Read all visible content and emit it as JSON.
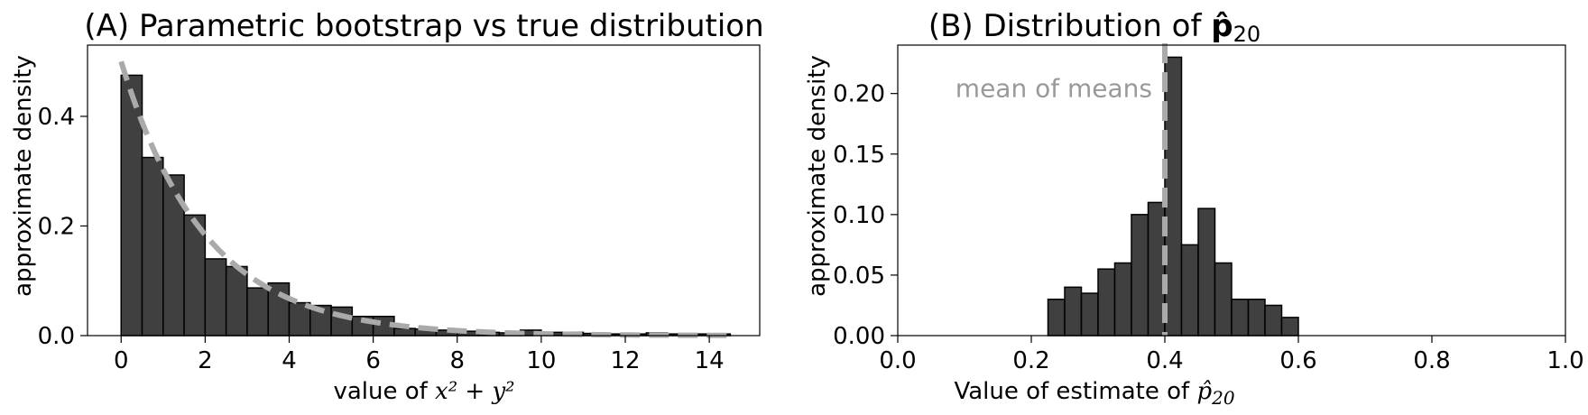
{
  "chart_data": [
    {
      "type": "bar",
      "panel": "A",
      "title": "(A) Parametric bootstrap vs true distribution",
      "xlabel": {
        "prefix": "value of ",
        "math": "x² + y²"
      },
      "ylabel": "approximate density",
      "xlim": [
        -0.8,
        15.2
      ],
      "ylim": [
        0,
        0.53
      ],
      "xticks": [
        0,
        2,
        4,
        6,
        8,
        10,
        12,
        14
      ],
      "xtick_labels": [
        "0",
        "2",
        "4",
        "6",
        "8",
        "10",
        "12",
        "14"
      ],
      "yticks": [
        0.0,
        0.2,
        0.4
      ],
      "ytick_labels": [
        "0.0",
        "0.2",
        "0.4"
      ],
      "bin_start": 0,
      "bin_width": 0.5,
      "values": [
        0.475,
        0.325,
        0.293,
        0.22,
        0.14,
        0.126,
        0.087,
        0.096,
        0.06,
        0.055,
        0.052,
        0.035,
        0.035,
        0.013,
        0.012,
        0.01,
        0.008,
        0.006,
        0.005,
        0.01,
        0.006,
        0.006,
        0.004,
        0.003,
        0.003,
        0.005,
        0.003,
        0.003,
        0.003
      ],
      "colors": {
        "bar": "#404040",
        "edge": "#000000",
        "curve": "#aaaaaa"
      },
      "curve": {
        "type": "exponential-density",
        "rate": 0.5,
        "x_range": [
          0,
          14.5
        ],
        "style": "dashed"
      },
      "grid": false
    },
    {
      "type": "bar",
      "panel": "B",
      "title": {
        "prefix": "(B) Distribution of ",
        "math": "p̂",
        "sub": "20"
      },
      "xlabel": {
        "prefix": "Value of estimate of ",
        "math": "p̂",
        "sub": "20"
      },
      "ylabel": "approximate density",
      "xlim": [
        0.0,
        1.0
      ],
      "ylim": [
        0,
        0.24
      ],
      "xticks": [
        0.0,
        0.2,
        0.4,
        0.6,
        0.8,
        1.0
      ],
      "xtick_labels": [
        "0.0",
        "0.2",
        "0.4",
        "0.6",
        "0.8",
        "1.0"
      ],
      "yticks": [
        0.0,
        0.05,
        0.1,
        0.15,
        0.2
      ],
      "ytick_labels": [
        "0.00",
        "0.05",
        "0.10",
        "0.15",
        "0.20"
      ],
      "bin_start": 0.225,
      "bin_width": 0.025,
      "values": [
        0.03,
        0.04,
        0.035,
        0.055,
        0.06,
        0.1,
        0.11,
        0.23,
        0.075,
        0.105,
        0.06,
        0.03,
        0.03,
        0.025,
        0.015
      ],
      "colors": {
        "bar": "#404040",
        "edge": "#000000",
        "vline": "#aaaaaa",
        "annotation": "#999999"
      },
      "vline": {
        "x": 0.4,
        "style": "dashed"
      },
      "annotation": {
        "text": "mean of means"
      },
      "grid": false
    }
  ]
}
